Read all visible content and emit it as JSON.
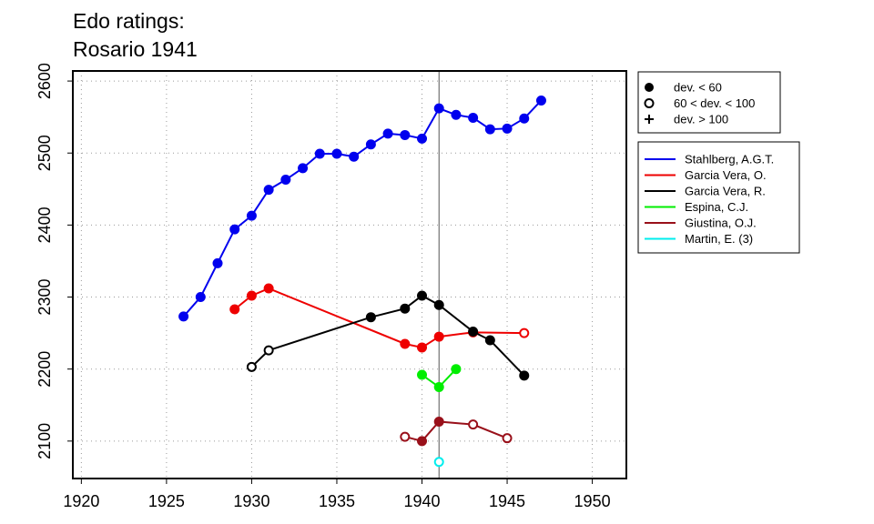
{
  "chart_data": {
    "type": "line",
    "title_lines": [
      "Edo ratings:",
      "Rosario 1941"
    ],
    "xlabel": "",
    "ylabel": "",
    "xlim": [
      1919.5,
      1952
    ],
    "ylim": [
      2048,
      2614
    ],
    "x_ticks": [
      1920,
      1925,
      1930,
      1935,
      1940,
      1945,
      1950
    ],
    "y_ticks": [
      2100,
      2200,
      2300,
      2400,
      2500,
      2600
    ],
    "grid": true,
    "event_year": 1941,
    "deviation_legend": [
      {
        "label": "dev. < 60",
        "marker": "filled"
      },
      {
        "label": "60 < dev. < 100",
        "marker": "open"
      },
      {
        "label": "dev. > 100",
        "marker": "plus"
      }
    ],
    "legend_position": "right",
    "series": [
      {
        "name": "Stahlberg, A.G.T.",
        "color": "#0000ee",
        "points": [
          {
            "x": 1926,
            "y": 2273,
            "m": "filled"
          },
          {
            "x": 1927,
            "y": 2300,
            "m": "filled"
          },
          {
            "x": 1928,
            "y": 2347,
            "m": "filled"
          },
          {
            "x": 1929,
            "y": 2394,
            "m": "filled"
          },
          {
            "x": 1930,
            "y": 2413,
            "m": "filled"
          },
          {
            "x": 1931,
            "y": 2449,
            "m": "filled"
          },
          {
            "x": 1932,
            "y": 2463,
            "m": "filled"
          },
          {
            "x": 1933,
            "y": 2479,
            "m": "filled"
          },
          {
            "x": 1934,
            "y": 2499,
            "m": "filled"
          },
          {
            "x": 1935,
            "y": 2499,
            "m": "filled"
          },
          {
            "x": 1936,
            "y": 2495,
            "m": "filled"
          },
          {
            "x": 1937,
            "y": 2512,
            "m": "filled"
          },
          {
            "x": 1938,
            "y": 2527,
            "m": "filled"
          },
          {
            "x": 1939,
            "y": 2525,
            "m": "filled"
          },
          {
            "x": 1940,
            "y": 2520,
            "m": "filled"
          },
          {
            "x": 1941,
            "y": 2562,
            "m": "filled"
          },
          {
            "x": 1942,
            "y": 2553,
            "m": "filled"
          },
          {
            "x": 1943,
            "y": 2549,
            "m": "filled"
          },
          {
            "x": 1944,
            "y": 2533,
            "m": "filled"
          },
          {
            "x": 1945,
            "y": 2534,
            "m": "filled"
          },
          {
            "x": 1946,
            "y": 2548,
            "m": "filled"
          },
          {
            "x": 1947,
            "y": 2573,
            "m": "filled"
          }
        ]
      },
      {
        "name": "Garcia Vera, O.",
        "color": "#ee0000",
        "points": [
          {
            "x": 1929,
            "y": 2283,
            "m": "filled"
          },
          {
            "x": 1930,
            "y": 2302,
            "m": "filled"
          },
          {
            "x": 1931,
            "y": 2312,
            "m": "filled"
          },
          {
            "x": 1939,
            "y": 2235,
            "m": "filled"
          },
          {
            "x": 1940,
            "y": 2230,
            "m": "filled"
          },
          {
            "x": 1941,
            "y": 2245,
            "m": "filled"
          },
          {
            "x": 1943,
            "y": 2251,
            "m": "filled"
          },
          {
            "x": 1946,
            "y": 2250,
            "m": "open"
          }
        ]
      },
      {
        "name": "Garcia Vera, R.",
        "color": "#000000",
        "points": [
          {
            "x": 1930,
            "y": 2203,
            "m": "open"
          },
          {
            "x": 1931,
            "y": 2226,
            "m": "open"
          },
          {
            "x": 1937,
            "y": 2272,
            "m": "filled"
          },
          {
            "x": 1939,
            "y": 2284,
            "m": "filled"
          },
          {
            "x": 1940,
            "y": 2302,
            "m": "filled"
          },
          {
            "x": 1941,
            "y": 2289,
            "m": "filled"
          },
          {
            "x": 1943,
            "y": 2252,
            "m": "filled"
          },
          {
            "x": 1944,
            "y": 2240,
            "m": "filled"
          },
          {
            "x": 1946,
            "y": 2191,
            "m": "filled"
          }
        ]
      },
      {
        "name": "Espina, C.J.",
        "color": "#00ee00",
        "points": [
          {
            "x": 1940,
            "y": 2192,
            "m": "filled"
          },
          {
            "x": 1941,
            "y": 2175,
            "m": "filled"
          },
          {
            "x": 1942,
            "y": 2200,
            "m": "filled"
          }
        ]
      },
      {
        "name": "Giustina, O.J.",
        "color": "#99101a",
        "points": [
          {
            "x": 1939,
            "y": 2106,
            "m": "open"
          },
          {
            "x": 1940,
            "y": 2100,
            "m": "filled"
          },
          {
            "x": 1941,
            "y": 2127,
            "m": "filled"
          },
          {
            "x": 1943,
            "y": 2123,
            "m": "open"
          },
          {
            "x": 1945,
            "y": 2104,
            "m": "open"
          }
        ]
      },
      {
        "name": "Martin, E. (3)",
        "color": "#00eeee",
        "points": [
          {
            "x": 1941,
            "y": 2071,
            "m": "open"
          }
        ]
      }
    ]
  }
}
